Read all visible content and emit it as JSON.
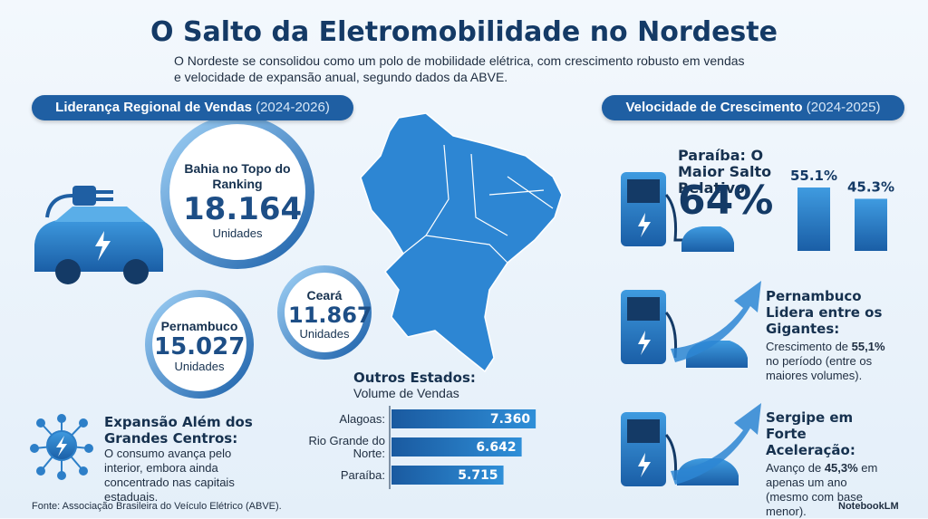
{
  "header": {
    "title": "O Salto da Eletromobilidade no Nordeste",
    "subtitle": "O Nordeste se consolidou como um polo de mobilidade elétrica, com crescimento robusto em vendas e velocidade de expansão anual, segundo dados da ABVE."
  },
  "left_section": {
    "title": "Liderança Regional de Vendas",
    "period": "(2024-2026)"
  },
  "states": [
    {
      "heading": "Bahia no Topo do Ranking",
      "value": "18.164",
      "unit": "Unidades"
    },
    {
      "heading": "Ceará",
      "value": "11.867",
      "unit": "Unidades"
    },
    {
      "heading": "Pernambuco",
      "value": "15.027",
      "unit": "Unidades"
    }
  ],
  "other_states": {
    "title": "Outros Estados:",
    "subtitle": "Volume de Vendas",
    "categories": [
      "Alagoas:",
      "Rio Grande do Norte:",
      "Paraíba:"
    ],
    "values": [
      7360,
      6642,
      5715
    ],
    "value_labels": [
      "7.360",
      "6.642",
      "5.715"
    ]
  },
  "expansion": {
    "title": "Expansão Além dos Grandes Centros:",
    "text": "O consumo avança pelo interior, embora ainda concentrado nas capitais estaduais."
  },
  "right_section": {
    "title": "Velocidade de Crescimento",
    "period": "(2024-2025)"
  },
  "growth": [
    {
      "title": "Paraíba: O Maior Salto Relativo",
      "value": "64%",
      "bars": {
        "values": [
          55.1,
          45.3
        ],
        "value_labels": [
          "55.1%",
          "45.3%"
        ]
      }
    },
    {
      "title": "Pernambuco Lidera entre os Gigantes:",
      "text": [
        "Crescimento de ",
        "55,1%",
        " no período (entre os maiores volumes)."
      ]
    },
    {
      "title": "Sergipe em Forte Aceleração:",
      "text": [
        "Avanço de ",
        "45,3%",
        " em apenas um ano (mesmo com base menor)."
      ]
    }
  ],
  "footer": {
    "source": "Fonte: Associação Brasileira do Veículo Elétrico (ABVE).",
    "brand": "NotebookLM"
  }
}
